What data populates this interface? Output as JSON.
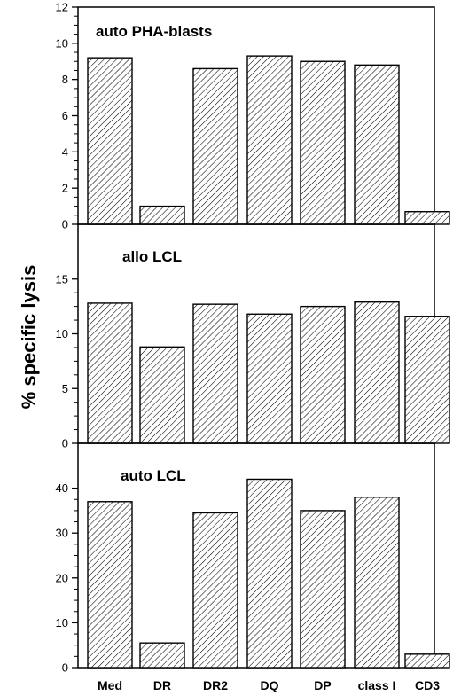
{
  "ylabel": "% specific lysis",
  "categories": [
    "Med",
    "DR",
    "DR2",
    "DQ",
    "DP",
    "class I",
    "CD3"
  ],
  "chart_data": [
    {
      "type": "bar",
      "title": "auto PHA-blasts",
      "categories": [
        "Med",
        "DR",
        "DR2",
        "DQ",
        "DP",
        "class I",
        "CD3"
      ],
      "values": [
        9.2,
        1.0,
        8.6,
        9.3,
        9.0,
        8.8,
        0.7
      ],
      "ylim": [
        0,
        12
      ],
      "yticks": [
        0,
        2,
        4,
        6,
        8,
        10,
        12
      ],
      "ylabel": "% specific lysis",
      "grid": false
    },
    {
      "type": "bar",
      "title": "allo LCL",
      "categories": [
        "Med",
        "DR",
        "DR2",
        "DQ",
        "DP",
        "class I",
        "CD3"
      ],
      "values": [
        12.8,
        8.8,
        12.7,
        11.8,
        12.5,
        12.9,
        11.6
      ],
      "ylim": [
        0,
        20
      ],
      "yticks": [
        0,
        5,
        10,
        15
      ],
      "ylabel": "% specific lysis",
      "grid": false
    },
    {
      "type": "bar",
      "title": "auto LCL",
      "categories": [
        "Med",
        "DR",
        "DR2",
        "DQ",
        "DP",
        "class I",
        "CD3"
      ],
      "values": [
        37,
        5.5,
        34.5,
        42,
        35,
        38,
        3
      ],
      "ylim": [
        0,
        50
      ],
      "yticks": [
        0,
        10,
        20,
        30,
        40
      ],
      "ylabel": "% specific lysis",
      "grid": false
    }
  ]
}
